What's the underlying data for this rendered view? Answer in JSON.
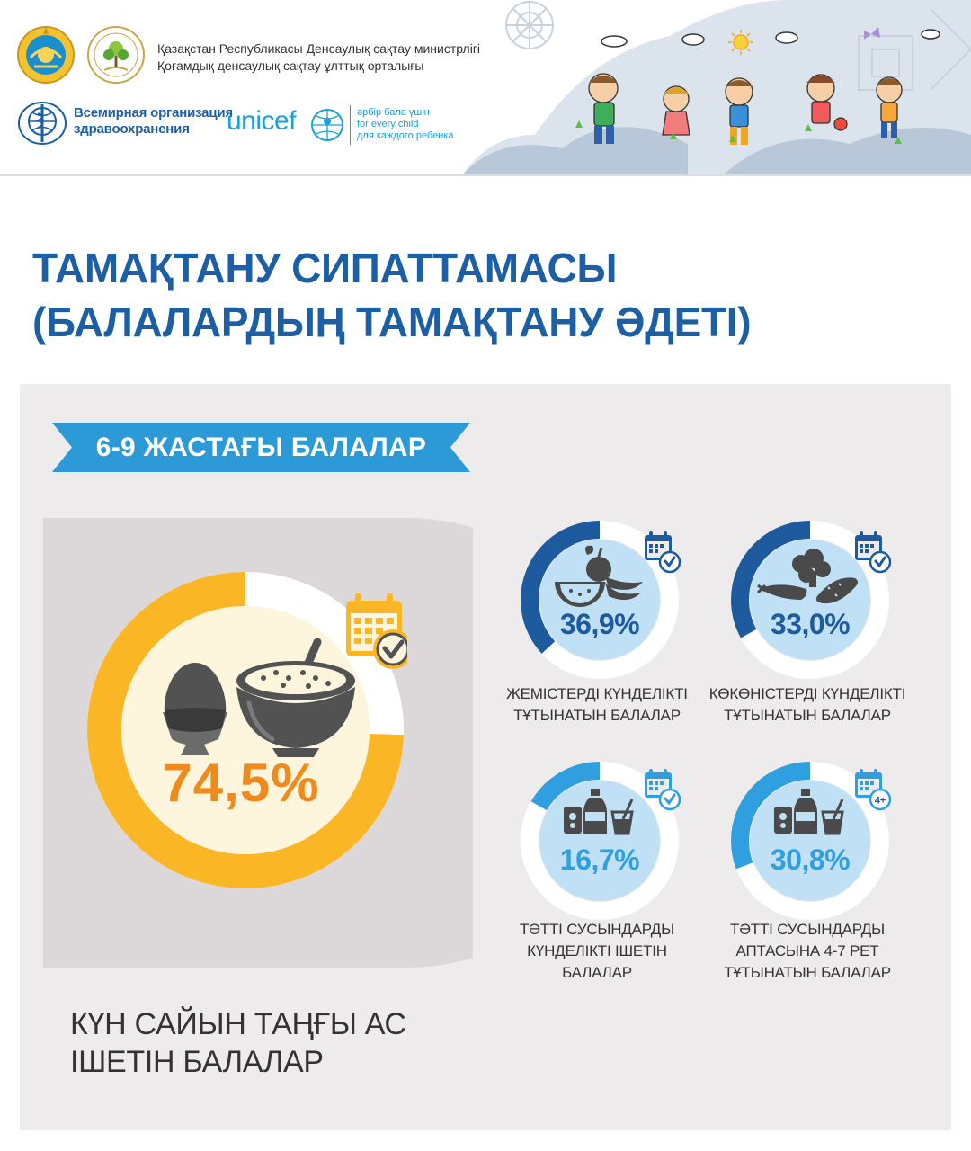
{
  "header": {
    "ministry_line1": "Қазақстан Республикасы Денсаулық сақтау министрлігі",
    "ministry_line2": "Қоғамдық денсаулық сақтау ұлттық орталығы",
    "who_line1": "Всемирная организация",
    "who_line2": "здравоохранения",
    "unicef_word": "unicef",
    "unicef_tag1": "әрбір бала үшін",
    "unicef_tag2": "for every child",
    "unicef_tag3": "для каждого ребенка"
  },
  "title": {
    "line1": "ТАМАҚТАНУ СИПАТТАМАСЫ",
    "line2": "(БАЛАЛАРДЫҢ ТАМАҚТАНУ ӘДЕТІ)"
  },
  "section": {
    "ribbon": "6-9 ЖАСТАҒЫ БАЛАЛАР"
  },
  "breakfast": {
    "value_text": "74,5%",
    "value": 74.5,
    "label_line1": "КҮН САЙЫН ТАҢҒЫ АС",
    "label_line2": "ІШЕТІН БАЛАЛАР"
  },
  "stats": [
    {
      "value_text": "36,9%",
      "value": 36.9,
      "label_line1": "ЖЕМІСТЕРДІ КҮНДЕЛІКТІ",
      "label_line2": "ТҰТЫНАТЫН БАЛАЛАР",
      "label_line3": ""
    },
    {
      "value_text": "33,0%",
      "value": 33.0,
      "label_line1": "КӨКӨНІСТЕРДІ КҮНДЕЛІКТІ",
      "label_line2": "ТҰТЫНАТЫН БАЛАЛАР",
      "label_line3": ""
    },
    {
      "value_text": "16,7%",
      "value": 16.7,
      "label_line1": "ТӘТТІ СУСЫНДАРДЫ",
      "label_line2": "КҮНДЕЛІКТІ ІШЕТІН",
      "label_line3": "БАЛАЛАР"
    },
    {
      "value_text": "30,8%",
      "value": 30.8,
      "label_line1": "ТӘТТІ СУСЫНДАРДЫ",
      "label_line2": "АПТАСЫНА 4-7 РЕТ",
      "label_line3": "ТҰТЫНАТЫН БАЛАЛАР"
    }
  ],
  "icons": {
    "badge_weekly": "4+"
  },
  "colors": {
    "title_blue": "#1c5fa5",
    "ribbon_blue": "#2b9ad6",
    "dark_blue": "#1d5a9e",
    "light_blue": "#2f9fe0",
    "orange": "#f08a1d",
    "yellow": "#fbb626"
  }
}
